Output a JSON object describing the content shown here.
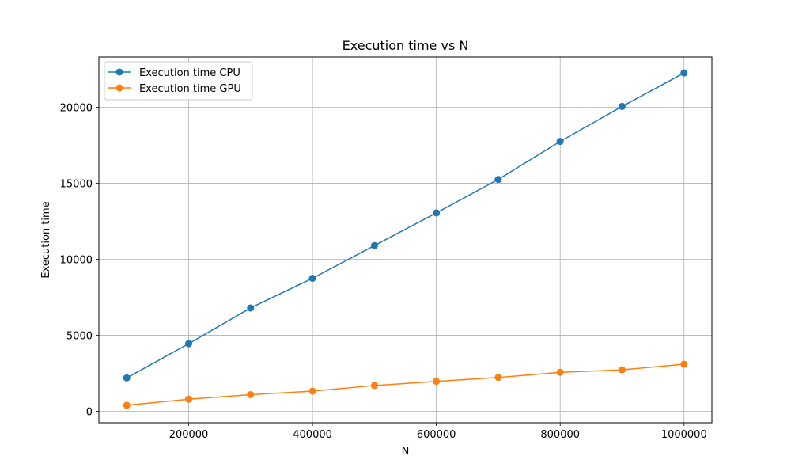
{
  "chart_data": {
    "type": "line",
    "title": "Execution time vs N",
    "xlabel": "N",
    "ylabel": "Execution time",
    "xlim": [
      55000,
      1045000
    ],
    "ylim": [
      -750,
      23300
    ],
    "xticks": [
      200000,
      400000,
      600000,
      800000,
      1000000
    ],
    "yticks": [
      0,
      5000,
      10000,
      15000,
      20000
    ],
    "grid": true,
    "legend_position": "upper-left",
    "x": [
      100000,
      200000,
      300000,
      400000,
      500000,
      600000,
      700000,
      800000,
      900000,
      1000000
    ],
    "series": [
      {
        "name": "Execution time CPU",
        "color": "#1f77b4",
        "marker": "circle",
        "values": [
          2200,
          4450,
          6800,
          8750,
          10900,
          13050,
          15250,
          17750,
          20050,
          22250
        ]
      },
      {
        "name": "Execution time GPU",
        "color": "#ff7f0e",
        "marker": "circle",
        "values": [
          400,
          800,
          1100,
          1330,
          1700,
          1970,
          2230,
          2570,
          2730,
          3100
        ]
      }
    ]
  }
}
